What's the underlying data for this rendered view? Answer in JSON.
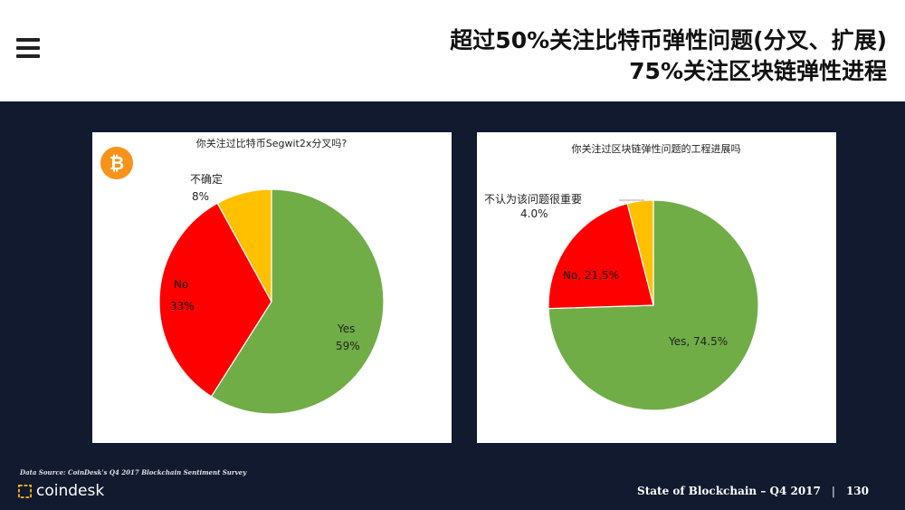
{
  "header": {
    "title_line1": "超过50%关注比特币弹性问题(分叉、扩展)",
    "title_line2": "75%关注区块链弹性进程",
    "menu_icon": "hamburger-menu-icon"
  },
  "colors": {
    "yes": "#70ad47",
    "no": "#ff0000",
    "unsure": "#ffc000",
    "bitcoin": "#f7931a"
  },
  "chart_data": [
    {
      "type": "pie",
      "title": "你关注过比特币Segwit2x分叉吗?",
      "icon": "bitcoin-icon",
      "slices": [
        {
          "label": "Yes",
          "value": 59,
          "display": "59%",
          "color": "#70ad47"
        },
        {
          "label": "No",
          "value": 33,
          "display": "33%",
          "color": "#ff0000"
        },
        {
          "label": "不确定",
          "value": 8,
          "display": "8%",
          "color": "#ffc000"
        }
      ]
    },
    {
      "type": "pie",
      "title": "你关注过区块链弹性问题的工程进展吗",
      "slices": [
        {
          "label": "Yes",
          "value": 74.5,
          "display": "Yes, 74.5%",
          "color": "#70ad47"
        },
        {
          "label": "No",
          "value": 21.5,
          "display": "No, 21.5%",
          "color": "#ff0000"
        },
        {
          "label": "不认为该问题很重要",
          "value": 4.0,
          "display": "4.0%",
          "color": "#ffc000"
        }
      ]
    }
  ],
  "footer": {
    "source": "Data Source: CoinDesk's Q4 2017 Blockchain Sentiment Survey",
    "logo_text": "coindesk",
    "report": "State of Blockchain – Q4 2017",
    "separator": "|",
    "page": "130"
  }
}
